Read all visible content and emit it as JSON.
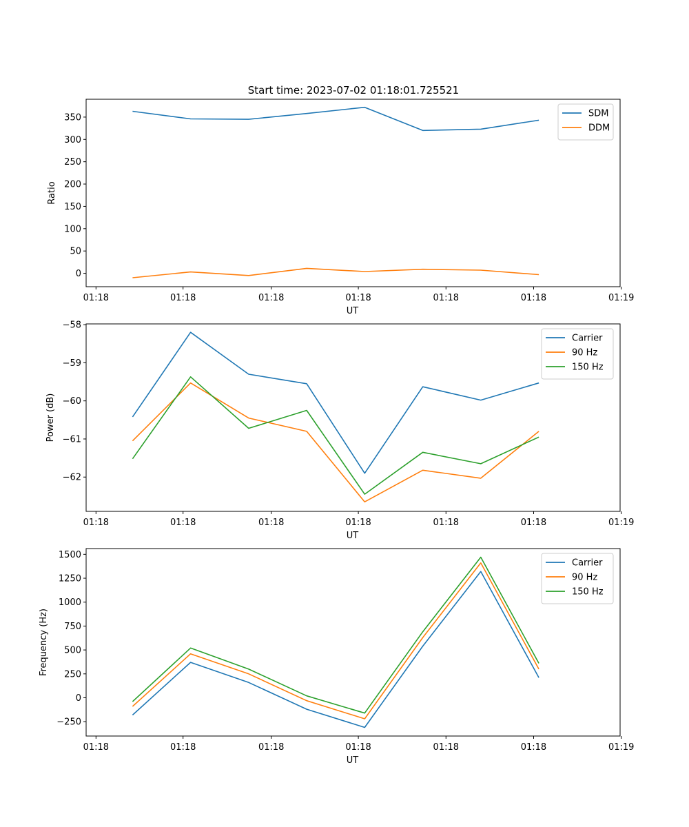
{
  "title": "Start time: 2023-07-02 01:18:01.725521",
  "colors": {
    "blue": "#1f77b4",
    "orange": "#ff7f0e",
    "green": "#2ca02c"
  },
  "chart_data": [
    {
      "type": "line",
      "title": "Start time: 2023-07-02 01:18:01.725521",
      "xlabel": "UT",
      "ylabel": "Ratio",
      "x": [
        1,
        2,
        3,
        4,
        5,
        6,
        7,
        8
      ],
      "xlim": [
        0.2,
        9.4
      ],
      "x_ticks": [
        0.37,
        1.87,
        3.39,
        4.89,
        6.4,
        7.91,
        9.42
      ],
      "x_tick_labels": [
        "01:18",
        "01:18",
        "01:18",
        "01:18",
        "01:18",
        "01:18",
        "01:19"
      ],
      "ylim": [
        -30,
        390
      ],
      "y_ticks": [
        0,
        50,
        100,
        150,
        200,
        250,
        300,
        350
      ],
      "y_tick_labels": [
        "0",
        "50",
        "100",
        "150",
        "200",
        "250",
        "300",
        "350"
      ],
      "legend_position": "top-right",
      "series": [
        {
          "name": "SDM",
          "color": "#1f77b4",
          "values": [
            363,
            346,
            345,
            358,
            372,
            320,
            323,
            343
          ]
        },
        {
          "name": "DDM",
          "color": "#ff7f0e",
          "values": [
            -10,
            3,
            -5,
            11,
            4,
            9,
            7,
            -3
          ]
        }
      ]
    },
    {
      "type": "line",
      "title": "",
      "xlabel": "UT",
      "ylabel": "Power (dB)",
      "x": [
        1,
        2,
        3,
        4,
        5,
        6,
        7,
        8
      ],
      "xlim": [
        0.2,
        9.4
      ],
      "x_ticks": [
        0.37,
        1.87,
        3.39,
        4.89,
        6.4,
        7.91,
        9.42
      ],
      "x_tick_labels": [
        "01:18",
        "01:18",
        "01:18",
        "01:18",
        "01:18",
        "01:18",
        "01:19"
      ],
      "ylim": [
        -62.9,
        -57.98
      ],
      "y_ticks": [
        -62,
        -61,
        -60,
        -59,
        -58
      ],
      "y_tick_labels": [
        "−62",
        "−61",
        "−60",
        "−59",
        "−58"
      ],
      "legend_position": "top-right",
      "series": [
        {
          "name": "Carrier",
          "color": "#1f77b4",
          "values": [
            -60.42,
            -58.2,
            -59.3,
            -59.55,
            -61.9,
            -59.63,
            -59.98,
            -59.53
          ]
        },
        {
          "name": "90 Hz",
          "color": "#ff7f0e",
          "values": [
            -61.05,
            -59.53,
            -60.45,
            -60.8,
            -62.65,
            -61.82,
            -62.03,
            -60.8
          ]
        },
        {
          "name": "150 Hz",
          "color": "#2ca02c",
          "values": [
            -61.52,
            -59.37,
            -60.72,
            -60.25,
            -62.45,
            -61.35,
            -61.65,
            -60.95
          ]
        }
      ]
    },
    {
      "type": "line",
      "title": "",
      "xlabel": "UT",
      "ylabel": "Frequency (Hz)",
      "x": [
        1,
        2,
        3,
        4,
        5,
        6,
        7,
        8
      ],
      "xlim": [
        0.2,
        9.4
      ],
      "x_ticks": [
        0.37,
        1.87,
        3.39,
        4.89,
        6.4,
        7.91,
        9.42
      ],
      "x_tick_labels": [
        "01:18",
        "01:18",
        "01:18",
        "01:18",
        "01:18",
        "01:18",
        "01:19"
      ],
      "ylim": [
        -400,
        1560
      ],
      "y_ticks": [
        -250,
        0,
        250,
        500,
        750,
        1000,
        1250,
        1500
      ],
      "y_tick_labels": [
        "−250",
        "0",
        "250",
        "500",
        "750",
        "1000",
        "1250",
        "1500"
      ],
      "legend_position": "top-right",
      "series": [
        {
          "name": "Carrier",
          "color": "#1f77b4",
          "values": [
            -180,
            370,
            160,
            -120,
            -310,
            540,
            1320,
            210
          ]
        },
        {
          "name": "90 Hz",
          "color": "#ff7f0e",
          "values": [
            -90,
            460,
            250,
            -30,
            -220,
            630,
            1410,
            300
          ]
        },
        {
          "name": "150 Hz",
          "color": "#2ca02c",
          "values": [
            -40,
            520,
            300,
            20,
            -160,
            690,
            1470,
            360
          ]
        }
      ]
    }
  ]
}
